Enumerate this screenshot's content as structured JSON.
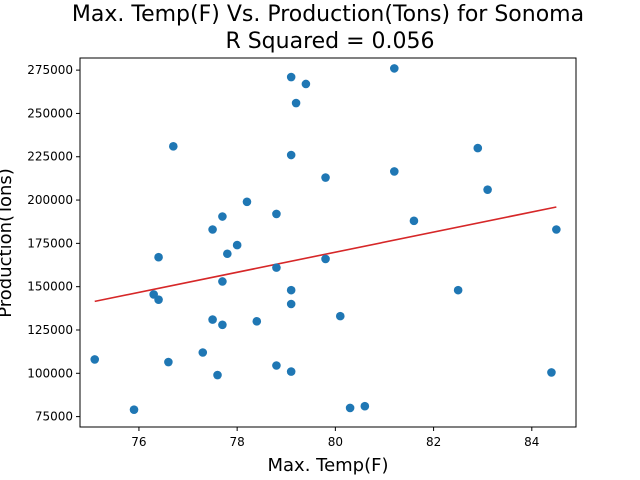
{
  "chart_data": {
    "type": "scatter",
    "title_line1": "Max. Temp(F) Vs. Production(Tons) for Sonoma",
    "title_line2": "R Squared =  0.056",
    "xlabel": "Max. Temp(F)",
    "ylabel": "Production(Tons)",
    "xlim": [
      74.8,
      84.9
    ],
    "ylim": [
      69000,
      282000
    ],
    "xticks": [
      76,
      78,
      80,
      82,
      84
    ],
    "xtick_labels": [
      "76",
      "78",
      "80",
      "82",
      "84"
    ],
    "yticks": [
      75000,
      100000,
      125000,
      150000,
      175000,
      200000,
      225000,
      250000,
      275000
    ],
    "ytick_labels": [
      "75000",
      "100000",
      "125000",
      "150000",
      "175000",
      "200000",
      "225000",
      "250000",
      "275000"
    ],
    "grid": false,
    "series": [
      {
        "marker_color": "#1f77b4",
        "points": [
          [
            75.1,
            108000
          ],
          [
            75.9,
            79000
          ],
          [
            76.3,
            145500
          ],
          [
            76.4,
            142500
          ],
          [
            76.4,
            167000
          ],
          [
            76.6,
            106500
          ],
          [
            76.7,
            231000
          ],
          [
            77.3,
            112000
          ],
          [
            77.5,
            183000
          ],
          [
            77.5,
            131000
          ],
          [
            77.6,
            99000
          ],
          [
            77.7,
            190500
          ],
          [
            77.7,
            153000
          ],
          [
            77.7,
            128000
          ],
          [
            77.8,
            169000
          ],
          [
            78.0,
            174000
          ],
          [
            78.2,
            199000
          ],
          [
            78.4,
            130000
          ],
          [
            78.8,
            192000
          ],
          [
            78.8,
            161000
          ],
          [
            78.8,
            104500
          ],
          [
            79.1,
            271000
          ],
          [
            79.1,
            226000
          ],
          [
            79.1,
            148000
          ],
          [
            79.1,
            140000
          ],
          [
            79.1,
            101000
          ],
          [
            79.2,
            256000
          ],
          [
            79.4,
            267000
          ],
          [
            79.8,
            213000
          ],
          [
            79.8,
            166000
          ],
          [
            80.1,
            133000
          ],
          [
            80.3,
            80000
          ],
          [
            80.6,
            81000
          ],
          [
            81.2,
            276000
          ],
          [
            81.2,
            216500
          ],
          [
            81.6,
            188000
          ],
          [
            82.5,
            148000
          ],
          [
            82.9,
            230000
          ],
          [
            83.1,
            206000
          ],
          [
            84.4,
            100500
          ],
          [
            84.5,
            183000
          ]
        ]
      }
    ],
    "fit_line": {
      "color": "#d62728",
      "x": [
        75.1,
        84.5
      ],
      "y": [
        141500,
        196000
      ]
    }
  }
}
